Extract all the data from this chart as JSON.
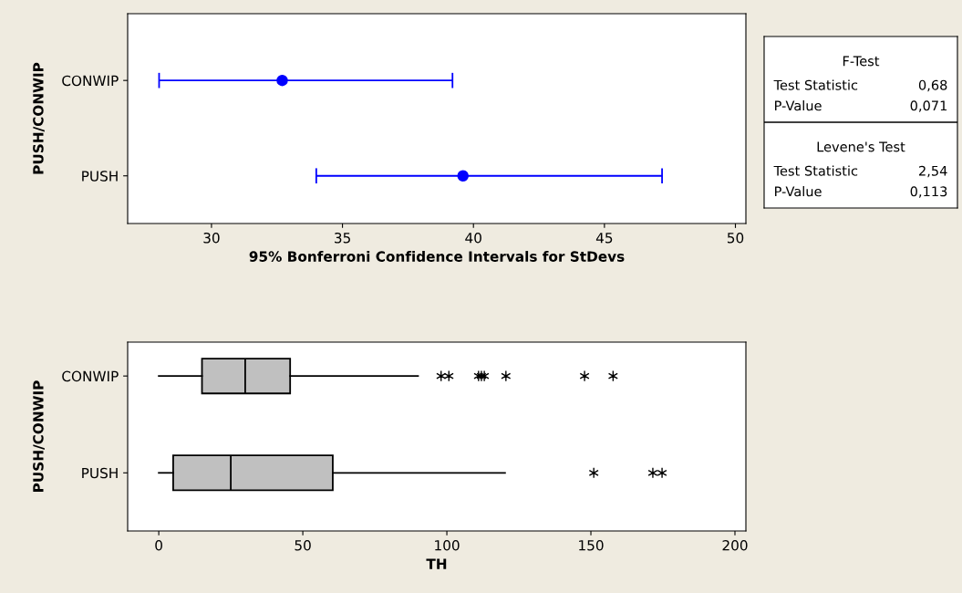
{
  "chart_data": [
    {
      "type": "scatter",
      "orientation": "horizontal",
      "ylabel": "PUSH/CONWIP",
      "xlabel": "95% Bonferroni Confidence Intervals for StDevs",
      "categories": [
        "CONWIP",
        "PUSH"
      ],
      "series": [
        {
          "color": "#0000ff",
          "values": [
            32.7,
            39.6
          ],
          "errors": [
            [
              28.0,
              39.2
            ],
            [
              34.0,
              47.2
            ]
          ]
        }
      ],
      "marker": "circle",
      "xlim": [
        26.8,
        50.4
      ],
      "xticks": [
        30,
        35,
        40,
        45,
        50
      ],
      "grid": false,
      "legend": false
    },
    {
      "type": "box",
      "orientation": "horizontal",
      "ylabel": "PUSH/CONWIP",
      "xlabel": "TH",
      "categories": [
        "CONWIP",
        "PUSH"
      ],
      "color": "#c0c0c0",
      "boxes": [
        {
          "low": 0,
          "q1": 15,
          "median": 30,
          "q3": 45.6,
          "high": 90,
          "outliers": [
            98,
            100.7,
            111,
            112,
            113,
            120.5,
            147.8,
            157.7
          ]
        },
        {
          "low": 0,
          "q1": 5,
          "median": 25,
          "q3": 60.4,
          "high": 120.2,
          "outliers": [
            151,
            171.5,
            174.7
          ]
        }
      ],
      "marker": "star",
      "xlim": [
        -10.8,
        203.8
      ],
      "xticks": [
        0,
        50,
        100,
        150,
        200
      ],
      "grid": false,
      "legend": false
    },
    {
      "type": "other",
      "annotations": [
        "F-Test",
        "Test Statistic",
        "0,68",
        "P-Value",
        "0,071",
        "Levene's Test",
        "Test Statistic",
        "2,54",
        "P-Value",
        "0,113"
      ]
    }
  ]
}
